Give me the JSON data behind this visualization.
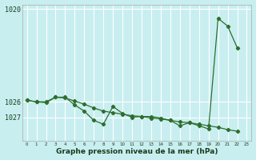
{
  "bg_color": "#c8eef0",
  "grid_color": "#ffffff",
  "line_color": "#2d6e2d",
  "xlabel": "Graphe pression niveau de la mer (hPa)",
  "ylim_bottom": 1028.5,
  "ylim_top": 1019.7,
  "xlim_left": -0.5,
  "xlim_right": 23.5,
  "yticks": [
    1020,
    1027,
    1026
  ],
  "ytick_labels": [
    "1020",
    "1027",
    "1026"
  ],
  "xticks": [
    0,
    1,
    2,
    3,
    4,
    5,
    6,
    7,
    8,
    9,
    10,
    11,
    12,
    13,
    14,
    15,
    16,
    17,
    18,
    19,
    20,
    21,
    22,
    23
  ],
  "series": [
    {
      "x": [
        0,
        1,
        2,
        3,
        4,
        5,
        6,
        7,
        8,
        9,
        10,
        11,
        12,
        13,
        14,
        15,
        16,
        17,
        18,
        19,
        20,
        21,
        22
      ],
      "y": [
        1025.9,
        1026.0,
        1026.0,
        1025.7,
        1025.7,
        1026.2,
        1026.6,
        1027.2,
        1027.45,
        1026.3,
        1026.75,
        1027.0,
        1026.95,
        1026.95,
        1027.05,
        1027.2,
        1027.55,
        1027.35,
        1027.55,
        1027.75,
        1020.6,
        1021.1,
        1022.5
      ]
    },
    {
      "x": [
        0,
        1,
        2,
        3,
        4,
        5,
        6,
        7,
        8,
        9,
        10,
        11,
        12,
        13,
        14,
        15,
        16,
        17,
        18,
        19,
        20,
        21,
        22
      ],
      "y": [
        1025.9,
        1026.0,
        1026.05,
        1025.7,
        1025.75,
        1025.95,
        1026.15,
        1026.4,
        1026.6,
        1026.7,
        1026.8,
        1026.9,
        1026.95,
        1027.05,
        1027.1,
        1027.2,
        1027.3,
        1027.35,
        1027.45,
        1027.55,
        1027.65,
        1027.8,
        1027.9
      ]
    },
    {
      "x": [
        0,
        4,
        9,
        20,
        21,
        22
      ],
      "y": [
        1025.9,
        1025.7,
        1026.3,
        1020.6,
        1021.1,
        1027.9
      ]
    }
  ]
}
